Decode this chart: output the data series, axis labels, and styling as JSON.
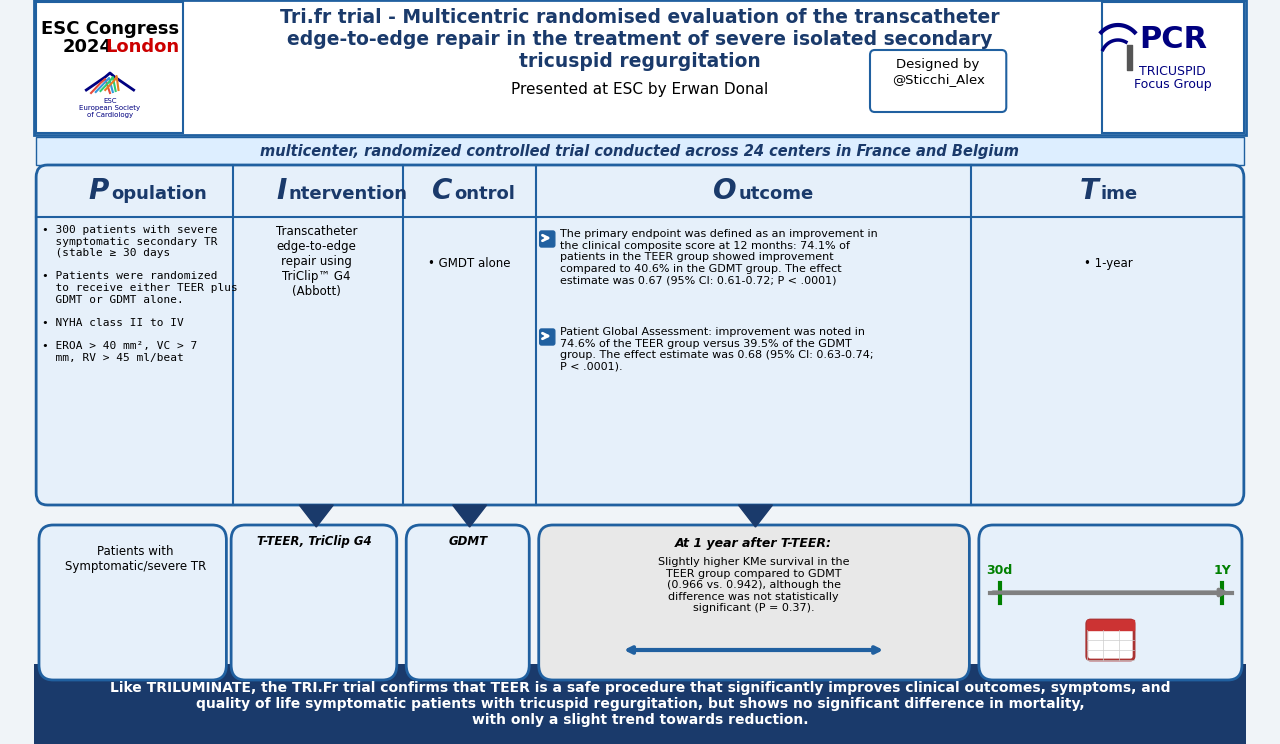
{
  "bg_color": "#f0f4f8",
  "header_bg": "#ffffff",
  "header_border": "#2060a0",
  "title_color": "#1a3a6b",
  "title_text": "Tri.fr trial - Multicentric randomised evaluation of the transcatheter\nedge-to-edge repair in the treatment of severe isolated secondary\ntricuspid regurgitation",
  "subtitle_text": "Presented at ESC by Erwan Donal",
  "esc_text": "ESC Congress\n2024 London",
  "designed_text": "Designed by\n@Sticchi_Alex",
  "pcr_text": "PCR\nTRICUSPID\nFocus Group",
  "multicenter_text": "multicenter, randomized controlled trial conducted across 24 centers in France and Belgium",
  "multicenter_color": "#1a3a6b",
  "section_bg": "#e8f0f8",
  "section_border": "#2060a0",
  "section_title_color": "#1a3a6b",
  "population_title": "Population",
  "intervention_title": "Intervention",
  "control_title": "Control",
  "outcome_title": "Outcome",
  "time_title": "Time",
  "population_text": "300 patients with severe\nsymptomatic secondary TR\n(stable ≥ 30 days\n\nPatients were randomized\nto receive either TEER plus\nGDMT or GDMT alone.\n\nNYHA class II to IV\n\nEROA > 40 mm², VC > 7\nmm, RV > 45 ml/beat",
  "intervention_text": "Transcatheter\nedge-to-edge\nrepair using\nTriClip™ G4\n(Abbott)",
  "control_text": "GMDT alone",
  "outcome_text1": "The primary endpoint was defined as an improvement in\nthe clinical composite score at 12 months: 74.1% of\npatients in the TEER group showed improvement\ncompared to 40.6% in the GDMT group. The effect\nestimate was 0.67 (95% CI: 0.61-0.72; P < .0001)",
  "outcome_text2": "Patient Global Assessment: improvement was noted in\n74.6% of the TEER group versus 39.5% of the GDMT\ngroup. The effect estimate was 0.68 (95% CI: 0.63-0.74;\nP < .0001).",
  "time_text": "1-year",
  "bottom_pop_label": "Patients with\nSymptomatic/severe TR",
  "bottom_int_label": "T-TEER, TriClip G4",
  "bottom_ctrl_label": "GDMT",
  "bottom_outcome_title": "At 1 year after T-TEER:",
  "bottom_outcome_text": "Slightly higher KMe survival in the\nTEER group compared to GDMT\n(0.966 vs. 0.942), although the\ndifference was not statistically\nsignificant (P = 0.37).",
  "bottom_time_label": "30d        1Y",
  "footer_text": "Like TRILUMINATE, the TRI.Fr trial confirms that TEER is a safe procedure that significantly improves clinical outcomes, symptoms, and\nquality of life symptomatic patients with tricuspid regurgitation, but shows no significant difference in mortality,\nwith only a slight trend towards reduction.",
  "footer_bg": "#1a3a6b",
  "footer_text_color": "#ffffff",
  "london_color": "#cc0000"
}
